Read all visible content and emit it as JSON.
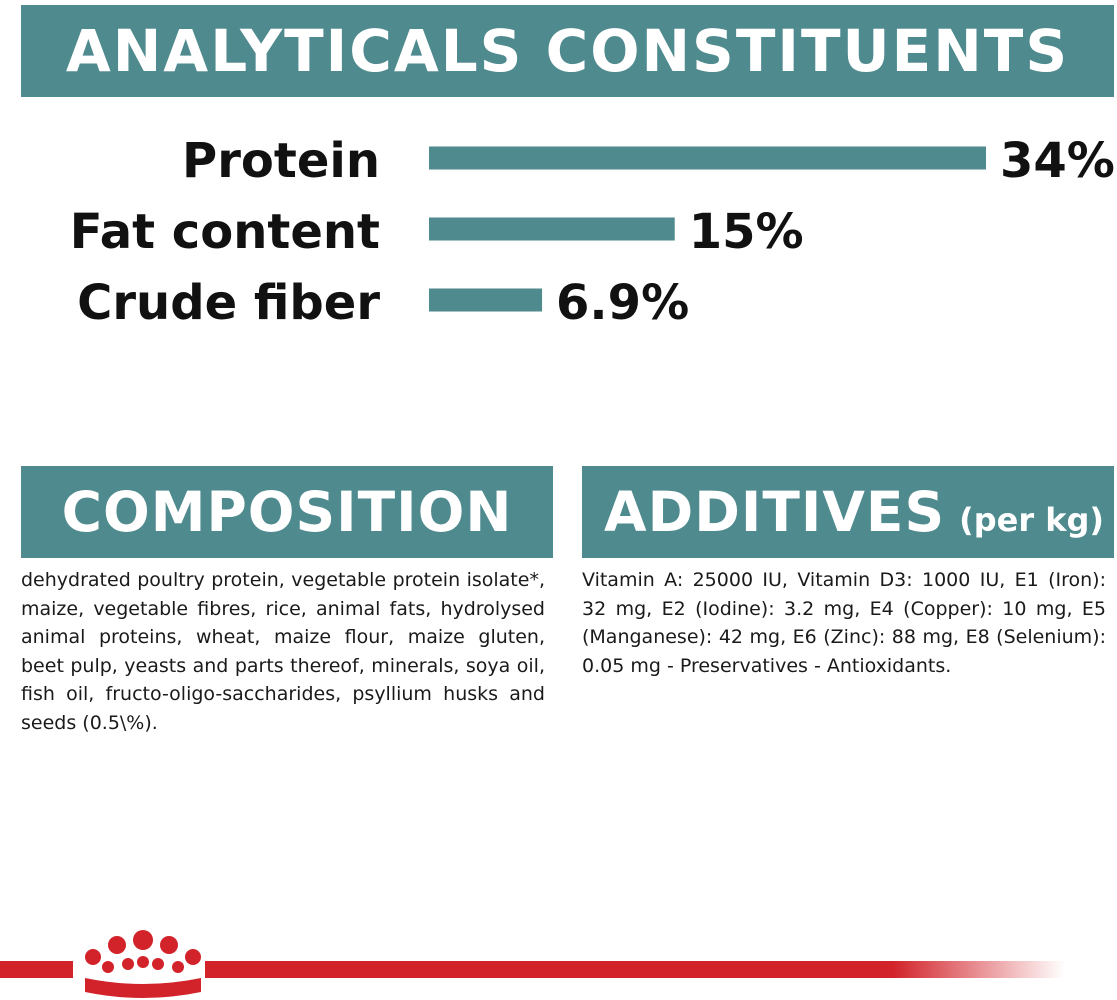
{
  "analytics": {
    "title": "ANALYTICALS CONSTITUENTS"
  },
  "chart_data": {
    "type": "bar",
    "orientation": "horizontal",
    "categories": [
      "Protein",
      "Fat content",
      "Crude fiber"
    ],
    "values": [
      34,
      15,
      6.9
    ],
    "value_labels": [
      "34%",
      "15%",
      "6.9%"
    ],
    "unit": "%",
    "xlim": [
      0,
      34
    ],
    "grid": false,
    "legend": "none",
    "bar_color": "#4e8a8e"
  },
  "composition": {
    "title": "COMPOSITION",
    "text": "dehydrated poultry protein, vegetable protein isolate*, maize, vegetable fibres, rice, animal fats, hydrolysed animal proteins, wheat, maize flour, maize gluten, beet pulp, yeasts and parts thereof, minerals, soya oil, fish oil, fructo-oligo-saccharides, psyllium husks and seeds (0.5\\%)."
  },
  "additives": {
    "title": "ADDITIVES",
    "subtitle": "(per kg)",
    "text": "Vitamin A: 25000 IU, Vitamin D3: 1000 IU, E1 (Iron): 32 mg, E2 (Iodine): 3.2 mg, E4 (Copper): 10 mg, E5 (Manganese): 42 mg, E6 (Zinc): 88 mg, E8 (Selenium): 0.05 mg - Preservatives - Antioxidants."
  },
  "colors": {
    "banner": "#4e8a8e",
    "brand_red": "#d2232a"
  },
  "footer": {
    "logo_icon": "crown-icon"
  }
}
